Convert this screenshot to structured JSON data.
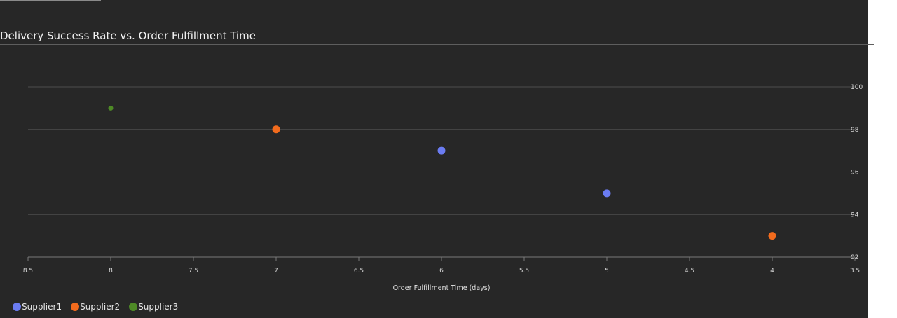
{
  "chart_data": {
    "type": "scatter",
    "title": "Delivery Success Rate vs. Order Fulfillment Time",
    "xlabel": "Order Fulfillment Time (days)",
    "ylabel": "",
    "x_reversed": true,
    "xlim": [
      3.5,
      8.5
    ],
    "ylim": [
      92,
      100
    ],
    "x_ticks": [
      "8.5",
      "8",
      "7.5",
      "7",
      "6.5",
      "6",
      "5.5",
      "5",
      "4.5",
      "4",
      "3.5"
    ],
    "y_ticks": [
      "100",
      "98",
      "96",
      "94",
      "92"
    ],
    "y_axis_side": "right",
    "grid": "horizontal",
    "legend_position": "bottom-left",
    "series": [
      {
        "name": "Supplier1",
        "color": "#6b7cf2",
        "points": [
          {
            "x": 6,
            "y": 97
          },
          {
            "x": 5,
            "y": 95
          }
        ]
      },
      {
        "name": "Supplier2",
        "color": "#f26b1d",
        "points": [
          {
            "x": 7,
            "y": 98
          },
          {
            "x": 4,
            "y": 93
          }
        ]
      },
      {
        "name": "Supplier3",
        "color": "#4e8a26",
        "points": [
          {
            "x": 8,
            "y": 99
          }
        ]
      }
    ]
  }
}
